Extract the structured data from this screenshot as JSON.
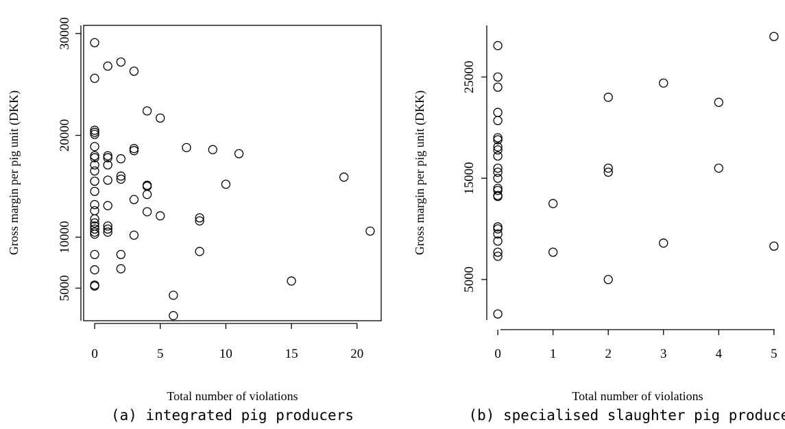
{
  "chart_data": [
    {
      "type": "scatter",
      "caption": "(a) integrated pig producers",
      "xlabel": "Total number of violations",
      "ylabel": "Gross margin per pig unit (DKK)",
      "xlim": [
        -0.84,
        21.84
      ],
      "ylim": [
        1800,
        30800
      ],
      "xticks": [
        0,
        5,
        10,
        15,
        20
      ],
      "yticks": [
        5000,
        10000,
        20000,
        30000
      ],
      "box": true,
      "points": [
        [
          0,
          29100
        ],
        [
          0,
          25600
        ],
        [
          0,
          20500
        ],
        [
          0,
          20300
        ],
        [
          0,
          20100
        ],
        [
          0,
          18900
        ],
        [
          0,
          18000
        ],
        [
          0,
          17800
        ],
        [
          0,
          17100
        ],
        [
          0,
          16500
        ],
        [
          0,
          15500
        ],
        [
          0,
          14500
        ],
        [
          0,
          13200
        ],
        [
          0,
          12600
        ],
        [
          0,
          11800
        ],
        [
          0,
          11400
        ],
        [
          0,
          11100
        ],
        [
          0,
          10800
        ],
        [
          0,
          10500
        ],
        [
          0,
          10300
        ],
        [
          0,
          8300
        ],
        [
          0,
          6800
        ],
        [
          0,
          5300
        ],
        [
          0,
          5200
        ],
        [
          1,
          26800
        ],
        [
          1,
          18000
        ],
        [
          1,
          17800
        ],
        [
          1,
          17100
        ],
        [
          1,
          15600
        ],
        [
          1,
          13100
        ],
        [
          1,
          11100
        ],
        [
          1,
          10800
        ],
        [
          1,
          10500
        ],
        [
          2,
          27200
        ],
        [
          2,
          17700
        ],
        [
          2,
          16000
        ],
        [
          2,
          15700
        ],
        [
          2,
          8300
        ],
        [
          2,
          6900
        ],
        [
          3,
          26300
        ],
        [
          3,
          18700
        ],
        [
          3,
          18500
        ],
        [
          3,
          13700
        ],
        [
          3,
          10200
        ],
        [
          4,
          22400
        ],
        [
          4,
          15100
        ],
        [
          4,
          15000
        ],
        [
          4,
          14200
        ],
        [
          4,
          12500
        ],
        [
          5,
          21700
        ],
        [
          5,
          12100
        ],
        [
          6,
          4300
        ],
        [
          6,
          2300
        ],
        [
          7,
          18800
        ],
        [
          8,
          11900
        ],
        [
          8,
          11600
        ],
        [
          8,
          8600
        ],
        [
          9,
          18600
        ],
        [
          10,
          15200
        ],
        [
          11,
          18200
        ],
        [
          15,
          5700
        ],
        [
          19,
          15900
        ],
        [
          21,
          10600
        ]
      ]
    },
    {
      "type": "scatter",
      "caption": "(b) specialised slaughter pig producers",
      "xlabel": "Total number of violations",
      "ylabel": "Gross margin per pig unit (DKK)",
      "xlim": [
        -0.2,
        5.2
      ],
      "ylim": [
        1000,
        30100
      ],
      "xticks": [
        0,
        1,
        2,
        3,
        4,
        5
      ],
      "yticks": [
        5000,
        15000,
        25000
      ],
      "box": false,
      "points": [
        [
          0,
          28100
        ],
        [
          0,
          25000
        ],
        [
          0,
          24000
        ],
        [
          0,
          21500
        ],
        [
          0,
          20700
        ],
        [
          0,
          19000
        ],
        [
          0,
          18800
        ],
        [
          0,
          18100
        ],
        [
          0,
          17800
        ],
        [
          0,
          17200
        ],
        [
          0,
          16000
        ],
        [
          0,
          15600
        ],
        [
          0,
          15000
        ],
        [
          0,
          14000
        ],
        [
          0,
          13800
        ],
        [
          0,
          13300
        ],
        [
          0,
          13200
        ],
        [
          0,
          10200
        ],
        [
          0,
          10000
        ],
        [
          0,
          9500
        ],
        [
          0,
          8800
        ],
        [
          0,
          7700
        ],
        [
          0,
          7300
        ],
        [
          0,
          1600
        ],
        [
          1,
          12500
        ],
        [
          1,
          7700
        ],
        [
          2,
          23000
        ],
        [
          2,
          16000
        ],
        [
          2,
          15600
        ],
        [
          2,
          5000
        ],
        [
          3,
          24400
        ],
        [
          3,
          8600
        ],
        [
          4,
          22500
        ],
        [
          4,
          16000
        ],
        [
          5,
          29000
        ],
        [
          5,
          8300
        ]
      ]
    }
  ]
}
